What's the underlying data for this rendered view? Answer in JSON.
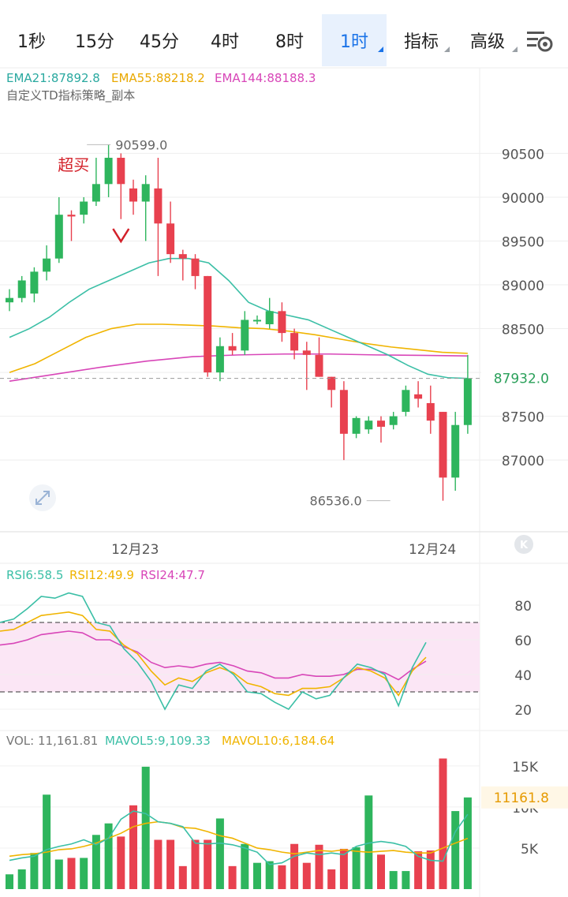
{
  "tabs": [
    {
      "label": "1秒",
      "active": false,
      "dropdown": false
    },
    {
      "label": "15分",
      "active": false,
      "dropdown": false
    },
    {
      "label": "45分",
      "active": false,
      "dropdown": false
    },
    {
      "label": "4时",
      "active": false,
      "dropdown": false
    },
    {
      "label": "8时",
      "active": false,
      "dropdown": false
    },
    {
      "label": "1时",
      "active": true,
      "dropdown": true
    },
    {
      "label": "指标",
      "active": false,
      "dropdown": true
    },
    {
      "label": "高级",
      "active": false,
      "dropdown": true
    }
  ],
  "colors": {
    "up": "#2eb55d",
    "down": "#e8414f",
    "ema21": "#3bbfa6",
    "ema55": "#f0b400",
    "ema144": "#d846b8",
    "accent": "#1a73e8"
  },
  "chart_data": [
    {
      "type": "candlestick",
      "title": "",
      "indicator_lines": [
        {
          "prefix": "EMA21:",
          "value": "87892.8",
          "color": "#2aa9a0"
        },
        {
          "prefix": "EMA55:",
          "value": "88218.2",
          "color": "#e9a800"
        },
        {
          "prefix": "EMA144:",
          "value": "88188.3",
          "color": "#d846b8"
        }
      ],
      "strategy_label": "自定义TD指标策略_副本",
      "ylim": [
        86200,
        90900
      ],
      "yticks": [
        "90500",
        "90000",
        "89500",
        "89000",
        "88500",
        "88000",
        "87500",
        "87000"
      ],
      "xticks": [
        {
          "label": "12月23",
          "index": 9
        },
        {
          "label": "12月24",
          "index": 33
        }
      ],
      "current_price": "87932.0",
      "high_marker": {
        "label": "90599.0",
        "index": 6
      },
      "low_marker": {
        "label": "86536.0",
        "index": 31
      },
      "signal": {
        "label": "超买",
        "index": 9
      },
      "candles": [
        {
          "o": 88800,
          "h": 88950,
          "l": 88700,
          "c": 88850
        },
        {
          "o": 88850,
          "h": 89100,
          "l": 88800,
          "c": 89050
        },
        {
          "o": 88900,
          "h": 89200,
          "l": 88800,
          "c": 89150
        },
        {
          "o": 89150,
          "h": 89450,
          "l": 89050,
          "c": 89300
        },
        {
          "o": 89300,
          "h": 90000,
          "l": 89250,
          "c": 89800
        },
        {
          "o": 89800,
          "h": 89850,
          "l": 89500,
          "c": 89780
        },
        {
          "o": 89800,
          "h": 90000,
          "l": 89700,
          "c": 89950
        },
        {
          "o": 89950,
          "h": 90450,
          "l": 89900,
          "c": 90150
        },
        {
          "o": 90150,
          "h": 90599,
          "l": 90000,
          "c": 90450
        },
        {
          "o": 90450,
          "h": 90500,
          "l": 89750,
          "c": 90150
        },
        {
          "o": 90100,
          "h": 90200,
          "l": 89800,
          "c": 89950
        },
        {
          "o": 89950,
          "h": 90250,
          "l": 89500,
          "c": 90150
        },
        {
          "o": 90100,
          "h": 90450,
          "l": 89100,
          "c": 89700
        },
        {
          "o": 89700,
          "h": 89950,
          "l": 89250,
          "c": 89350
        },
        {
          "o": 89350,
          "h": 89400,
          "l": 89050,
          "c": 89300
        },
        {
          "o": 89300,
          "h": 89350,
          "l": 88950,
          "c": 89100
        },
        {
          "o": 89100,
          "h": 89100,
          "l": 87950,
          "c": 88000
        },
        {
          "o": 88000,
          "h": 88400,
          "l": 87900,
          "c": 88300
        },
        {
          "o": 88300,
          "h": 88450,
          "l": 88200,
          "c": 88250
        },
        {
          "o": 88250,
          "h": 88700,
          "l": 88200,
          "c": 88600
        },
        {
          "o": 88600,
          "h": 88650,
          "l": 88550,
          "c": 88600
        },
        {
          "o": 88550,
          "h": 88850,
          "l": 88500,
          "c": 88700
        },
        {
          "o": 88700,
          "h": 88800,
          "l": 88350,
          "c": 88450
        },
        {
          "o": 88450,
          "h": 88500,
          "l": 88150,
          "c": 88250
        },
        {
          "o": 88250,
          "h": 88350,
          "l": 87800,
          "c": 88200
        },
        {
          "o": 88200,
          "h": 88400,
          "l": 87950,
          "c": 87950
        },
        {
          "o": 87950,
          "h": 87950,
          "l": 87600,
          "c": 87800
        },
        {
          "o": 87800,
          "h": 87900,
          "l": 87000,
          "c": 87300
        },
        {
          "o": 87300,
          "h": 87500,
          "l": 87250,
          "c": 87480
        },
        {
          "o": 87350,
          "h": 87500,
          "l": 87300,
          "c": 87450
        },
        {
          "o": 87450,
          "h": 87500,
          "l": 87200,
          "c": 87380
        },
        {
          "o": 87400,
          "h": 87550,
          "l": 87350,
          "c": 87500
        },
        {
          "o": 87550,
          "h": 87850,
          "l": 87500,
          "c": 87800
        },
        {
          "o": 87750,
          "h": 87900,
          "l": 87600,
          "c": 87700
        },
        {
          "o": 87650,
          "h": 87850,
          "l": 87300,
          "c": 87450
        },
        {
          "o": 87550,
          "h": 87550,
          "l": 86536,
          "c": 86800
        },
        {
          "o": 86800,
          "h": 87550,
          "l": 86650,
          "c": 87400
        },
        {
          "o": 87400,
          "h": 88200,
          "l": 87300,
          "c": 87932
        }
      ],
      "ema21": [
        88400,
        88500,
        88630,
        88800,
        88950,
        89050,
        89150,
        89250,
        89300,
        89300,
        89250,
        89050,
        88800,
        88700,
        88650,
        88600,
        88500,
        88400,
        88300,
        88200,
        88080,
        87980,
        87940,
        87932
      ],
      "ema55": [
        88000,
        88100,
        88250,
        88400,
        88500,
        88550,
        88550,
        88540,
        88530,
        88510,
        88500,
        88470,
        88430,
        88380,
        88330,
        88290,
        88260,
        88230,
        88218
      ],
      "ema144": [
        87900,
        87980,
        88060,
        88130,
        88180,
        88200,
        88210,
        88210,
        88200,
        88195,
        88188
      ],
      "rsi": {
        "labels": [
          {
            "prefix": "RSI6:",
            "value": "58.5"
          },
          {
            "prefix": "RSI12:",
            "value": "49.9"
          },
          {
            "prefix": "RSI24:",
            "value": "47.7"
          }
        ],
        "ylim": [
          15,
          90
        ],
        "yticks": [
          "80",
          "60",
          "40",
          "20"
        ],
        "overbought": 70,
        "oversold": 30,
        "rsi6": [
          70,
          72,
          78,
          85,
          84,
          87,
          85,
          70,
          68,
          55,
          47,
          36,
          20,
          34,
          32,
          42,
          46,
          40,
          30,
          29,
          24,
          20,
          30,
          26,
          28,
          38,
          46,
          44,
          40,
          22,
          44,
          58.5
        ],
        "rsi12": [
          65,
          66,
          70,
          74,
          75,
          76,
          74,
          66,
          65,
          57,
          52,
          42,
          34,
          38,
          36,
          41,
          44,
          41,
          35,
          33,
          29,
          28,
          32,
          32,
          33,
          38,
          44,
          42,
          38,
          28,
          42,
          49.9
        ],
        "rsi24": [
          57,
          58,
          60,
          63,
          64,
          65,
          64,
          60,
          60,
          56,
          53,
          47,
          44,
          45,
          44,
          46,
          47,
          45,
          42,
          41,
          38,
          38,
          40,
          39,
          39,
          40,
          43,
          43,
          41,
          37,
          43,
          47.7
        ]
      },
      "volume": {
        "labels": [
          {
            "prefix": "VOL: ",
            "value": "11,161.81"
          },
          {
            "prefix": "MAVOL5:",
            "value": "9,109.33"
          },
          {
            "prefix": "MAVOL10:",
            "value": "6,184.64"
          }
        ],
        "ylim": [
          0,
          17000
        ],
        "yticks": [
          "15K",
          "10K",
          "5K"
        ],
        "current": "11161.8",
        "bars": [
          1800,
          2400,
          4400,
          11500,
          3600,
          3800,
          3800,
          6600,
          8000,
          6400,
          10200,
          14900,
          6000,
          6000,
          2800,
          6000,
          6000,
          8600,
          2800,
          5500,
          3200,
          3400,
          2900,
          5500,
          3200,
          5400,
          2400,
          4900,
          5100,
          11400,
          4200,
          2200,
          2200,
          4600,
          4700,
          15900,
          9500,
          11161.8
        ],
        "mavol5": [
          3500,
          3800,
          4000,
          4800,
          5200,
          5500,
          6000,
          5400,
          6200,
          8500,
          9500,
          9200,
          8200,
          8000,
          7600,
          5600,
          5500,
          5600,
          5400,
          5000,
          4500,
          3000,
          3200,
          4000,
          4400,
          4200,
          4400,
          4200,
          5200,
          5600,
          5800,
          5600,
          5200,
          4000,
          3500,
          3400,
          7000,
          9109.33
        ],
        "mavol10": [
          4000,
          4200,
          4300,
          4500,
          4800,
          4900,
          5200,
          5600,
          6200,
          6800,
          7600,
          8000,
          8200,
          8000,
          7500,
          7400,
          7000,
          6500,
          6200,
          5600,
          5000,
          4800,
          4500,
          4300,
          4500,
          4700,
          4600,
          4800,
          4600,
          4500,
          4600,
          4700,
          4500,
          4400,
          4400,
          5000,
          5600,
          6184.64
        ]
      }
    }
  ]
}
